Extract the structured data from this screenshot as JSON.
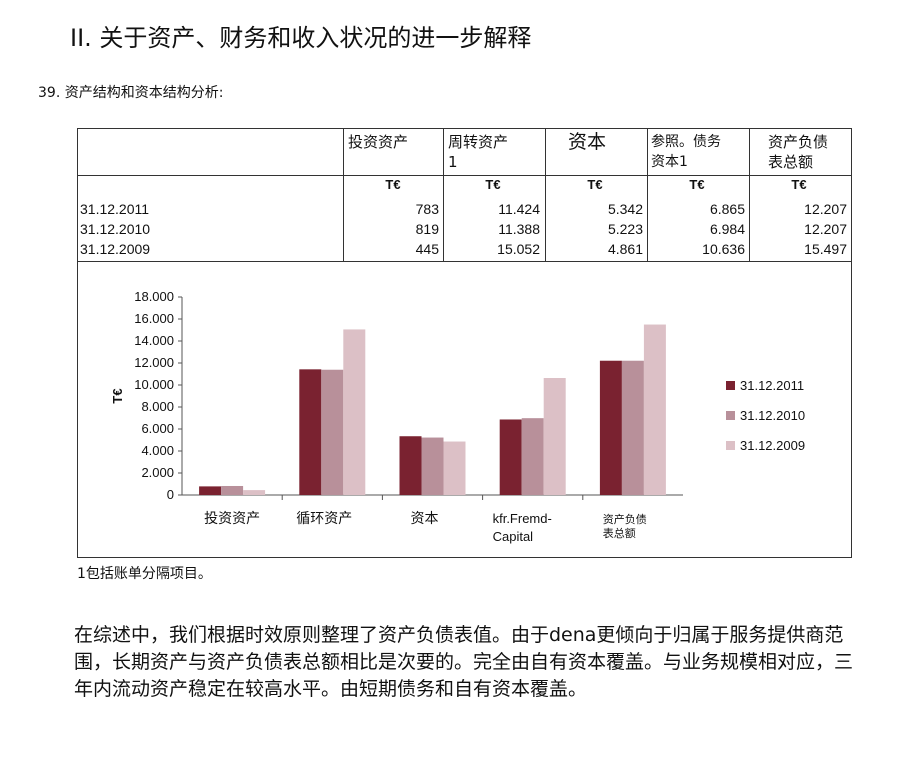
{
  "heading": "II. 关于资产、财务和收入状况的进一步解释",
  "subheading": "39. 资产结构和资本结构分析:",
  "table": {
    "headers": [
      "投资资产",
      "周转资产\n1",
      "资本",
      "参照。债务\n资本1",
      "资产负债\n表总额"
    ],
    "unit": "T€",
    "rows": [
      {
        "date": "31.12.2011",
        "values": [
          "783",
          "11.424",
          "5.342",
          "6.865",
          "12.207"
        ]
      },
      {
        "date": "31.12.2010",
        "values": [
          "819",
          "11.388",
          "5.223",
          "6.984",
          "12.207"
        ]
      },
      {
        "date": "31.12.2009",
        "values": [
          "445",
          "15.052",
          "4.861",
          "10.636",
          "15.497"
        ]
      }
    ]
  },
  "chart_data": {
    "type": "bar",
    "categories": [
      "投资资产",
      "循环资产",
      "资本",
      "kfr.Fremd-\nCapital",
      "资产负债\n表总额"
    ],
    "series": [
      {
        "name": "31.12.2011",
        "color": "#7a2230",
        "values": [
          783,
          11424,
          5342,
          6865,
          12207
        ]
      },
      {
        "name": "31.12.2010",
        "color": "#b8909a",
        "values": [
          819,
          11388,
          5223,
          6984,
          12207
        ]
      },
      {
        "name": "31.12.2009",
        "color": "#dcc0c6",
        "values": [
          445,
          15052,
          4861,
          10636,
          15497
        ]
      }
    ],
    "ylabel": "T€",
    "ylim": [
      0,
      18000
    ],
    "yticks": [
      "18.000",
      "16.000",
      "14.000",
      "12.000",
      "10.000",
      "8.000",
      "6.000",
      "4.000",
      "2.000",
      "0"
    ],
    "legend": "right",
    "grid": false
  },
  "footnote": "1包括账单分隔项目。",
  "paragraph": "在综述中，我们根据时效原则整理了资产负债表值。由于dena更倾向于归属于服务提供商范围，长期资产与资产负债表总额相比是次要的。完全由自有资本覆盖。与业务规模相对应，三年内流动资产稳定在较高水平。由短期债务和自有资本覆盖。"
}
